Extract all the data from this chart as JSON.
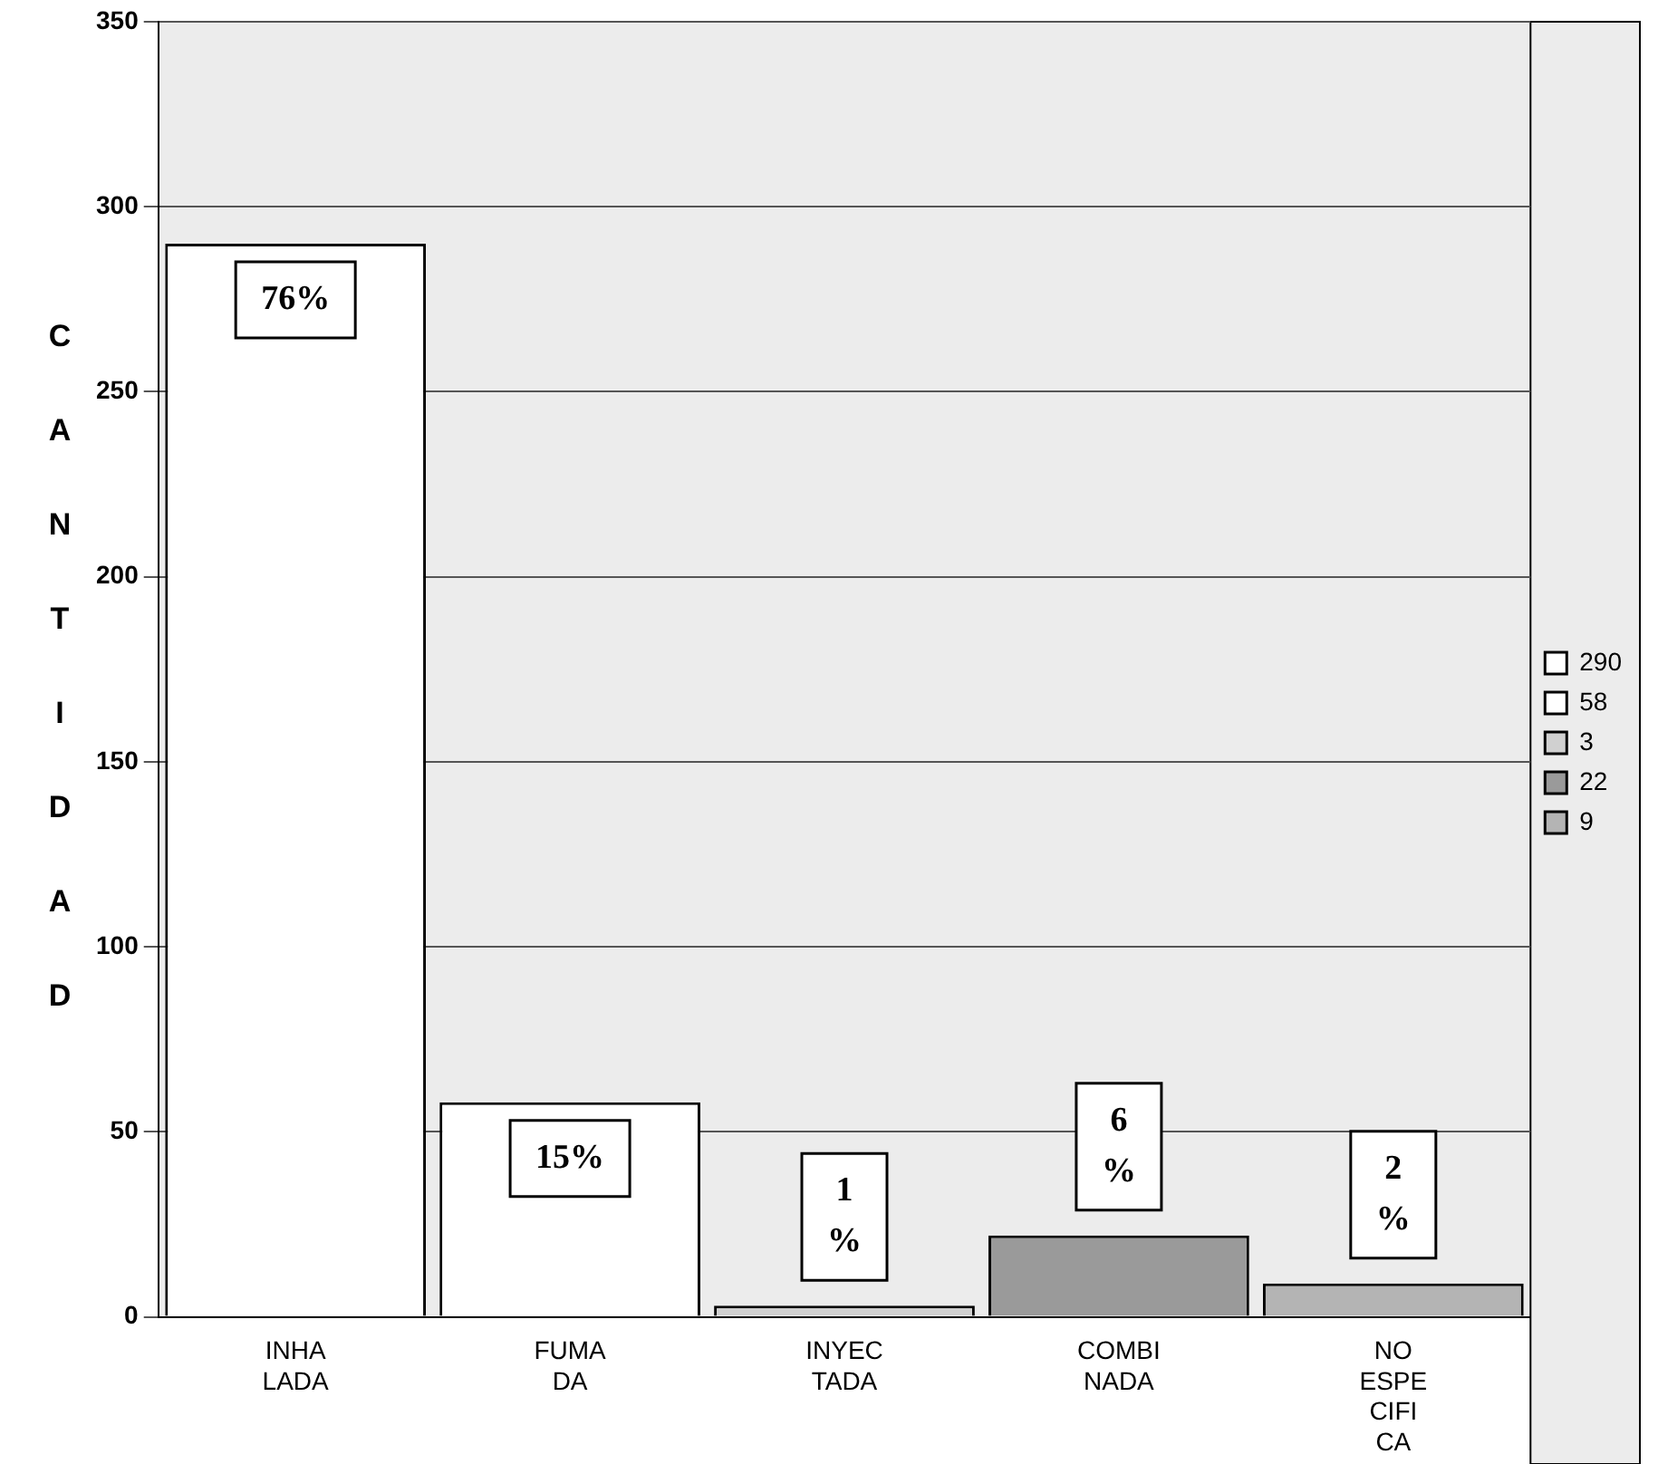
{
  "chart_data": {
    "type": "bar",
    "ylabel": "CANTIDAD",
    "categories": [
      "INHA LADA",
      "FUMA DA",
      "INYEC TADA",
      "COMBI NADA",
      "NO ESPE CIFI CA"
    ],
    "series": [
      {
        "name": "290",
        "color": "#ffffff",
        "values": [
          290,
          null,
          null,
          null,
          null
        ]
      },
      {
        "name": "58",
        "color": "#ffffff",
        "values": [
          null,
          58,
          null,
          null,
          null
        ]
      },
      {
        "name": "3",
        "color": "#d0d0d0",
        "values": [
          null,
          null,
          3,
          null,
          null
        ]
      },
      {
        "name": "22",
        "color": "#9a9a9a",
        "values": [
          null,
          null,
          null,
          22,
          null
        ]
      },
      {
        "name": "9",
        "color": "#b4b4b4",
        "values": [
          null,
          null,
          null,
          null,
          9
        ]
      }
    ],
    "ylim": [
      0,
      350
    ],
    "yticks": [
      0,
      50,
      100,
      150,
      200,
      250,
      300,
      350
    ],
    "grid": "y",
    "legend": "right",
    "annotations": [
      "76%",
      "15%",
      "1\n%",
      "6\n%",
      "2\n%"
    ]
  }
}
